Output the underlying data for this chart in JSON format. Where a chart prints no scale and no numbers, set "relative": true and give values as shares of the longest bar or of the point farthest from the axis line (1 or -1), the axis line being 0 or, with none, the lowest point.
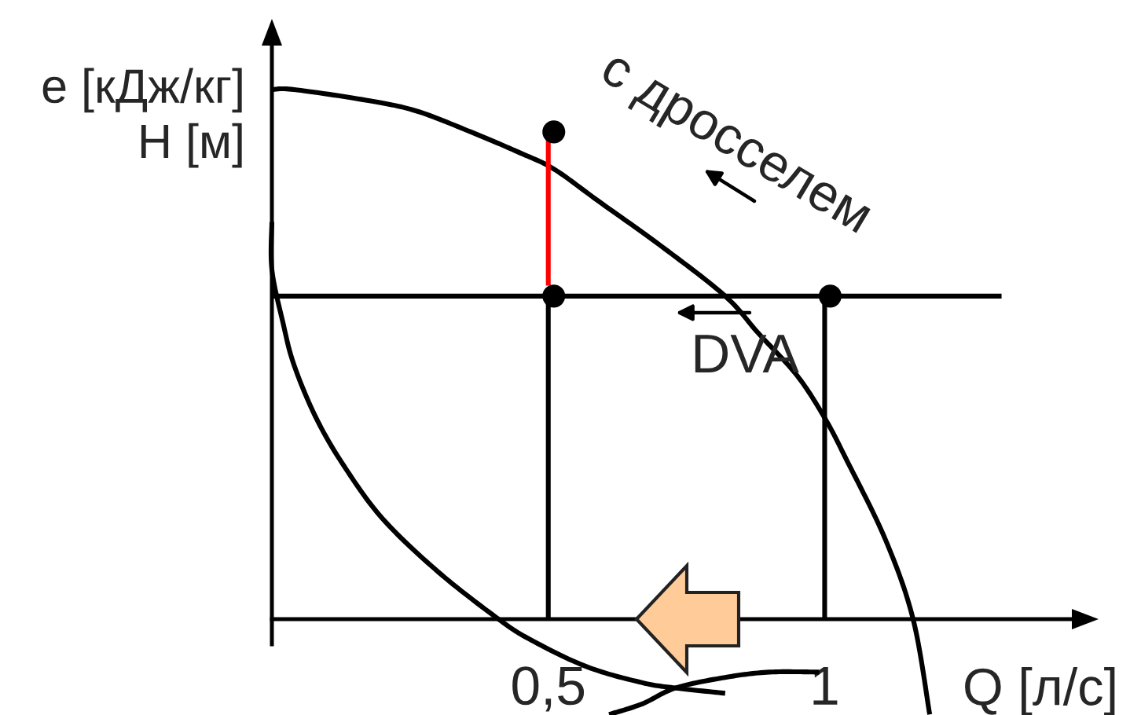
{
  "chart_data": {
    "type": "line",
    "relative": true,
    "tick_labels": "x",
    "xlabel": "Q [л/с]",
    "ylabel": "e [кДж/кг]\nH [м]",
    "xlim": [
      0.0,
      1.45
    ],
    "xticks": [
      {
        "value": 0.5,
        "label": "0,5"
      },
      1
    ],
    "annotations": [
      "с дросселем",
      "DVA"
    ],
    "series": [
      {
        "color": "#000000",
        "x": [
          0.0,
          0.04,
          0.17,
          0.26,
          0.36,
          0.45,
          0.51,
          0.59,
          0.71,
          0.82,
          0.88,
          0.95,
          1.0,
          1.04,
          1.11,
          1.16,
          1.19
        ],
        "values": [
          1.0,
          1.0,
          0.98,
          0.96,
          0.92,
          0.88,
          0.85,
          0.79,
          0.7,
          0.61,
          0.54,
          0.46,
          0.38,
          0.3,
          0.15,
          0.0,
          -0.18
        ]
      },
      {
        "color": "#000000",
        "x": [
          0.0,
          0.0,
          0.02,
          0.04,
          0.08,
          0.13,
          0.2,
          0.3,
          0.41,
          0.47,
          0.57,
          0.67,
          0.73,
          0.82
        ],
        "values": [
          0.75,
          0.66,
          0.56,
          0.48,
          0.38,
          0.29,
          0.19,
          0.09,
          0.0,
          -0.04,
          -0.09,
          -0.12,
          -0.13,
          -0.14
        ]
      },
      {
        "color": "#000000",
        "x": [
          0.61,
          0.67,
          0.73,
          0.82,
          0.9,
          0.99
        ],
        "values": [
          -0.18,
          -0.16,
          -0.13,
          -0.11,
          -0.1,
          -0.1
        ]
      },
      {
        "color": "#000000",
        "x": [
          0.0,
          1.32
        ],
        "values": [
          0.61,
          0.61
        ]
      },
      {
        "color": "#ff0000",
        "x": [
          0.5,
          0.5
        ],
        "values": [
          0.63,
          0.92
        ]
      },
      {
        "color": "#000000",
        "x": [
          0.5,
          0.5
        ],
        "values": [
          0.0,
          0.61
        ]
      },
      {
        "color": "#000000",
        "x": [
          1.0,
          1.0
        ],
        "values": [
          0.0,
          0.61
        ]
      },
      {
        "type": "scatter",
        "color": "#000000",
        "marker": "circle",
        "x": [
          0.51,
          0.51,
          1.01
        ],
        "values": [
          0.92,
          0.61,
          0.61
        ]
      }
    ]
  }
}
